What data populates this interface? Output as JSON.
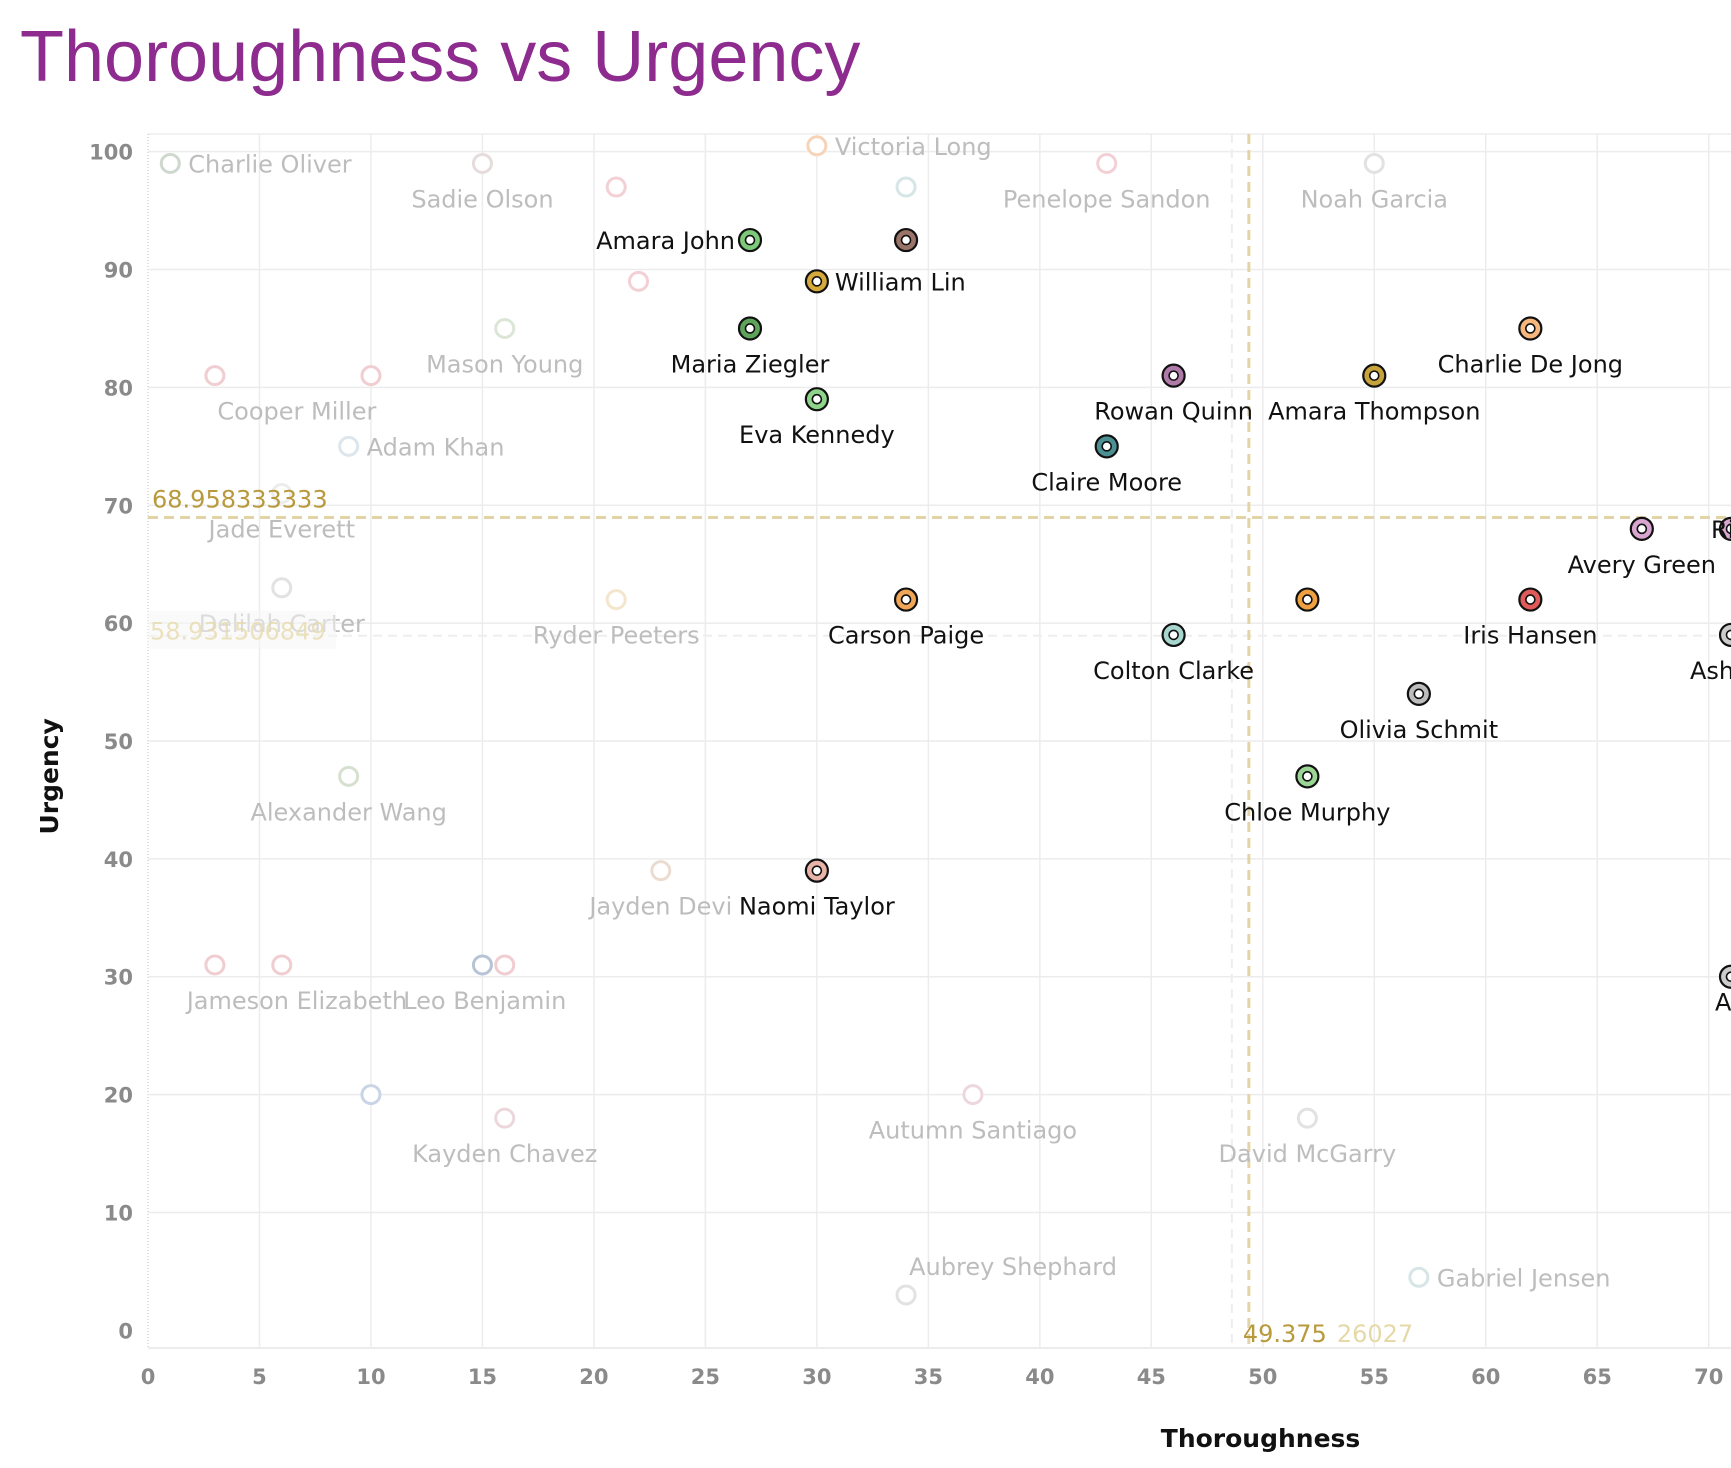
{
  "chart_data": {
    "type": "scatter",
    "title": "Thoroughness vs Urgency",
    "xlabel": "Thoroughness",
    "ylabel": "Urgency",
    "xlim": [
      0,
      71
    ],
    "ylim": [
      -1.5,
      101.5
    ],
    "x_ticks": [
      0,
      5,
      10,
      15,
      20,
      25,
      30,
      35,
      40,
      45,
      50,
      55,
      60,
      65,
      70
    ],
    "y_ticks": [
      0,
      10,
      20,
      30,
      40,
      50,
      60,
      70,
      80,
      90,
      100
    ],
    "reference_lines": {
      "x_avg": {
        "value": 49.375,
        "label": "49.375"
      },
      "x_avg_faded": {
        "label": "26027"
      },
      "y_avg": {
        "value": 68.958333333,
        "label": "68.958333333"
      },
      "y_avg_faded": {
        "value": 58.931506849,
        "label": "58.931506849"
      }
    },
    "colors": {
      "accent": "#b89a3c",
      "title": "#8e2b8e",
      "faded_text": "#bdbdbd",
      "grid": "#ececec"
    },
    "points": [
      {
        "name": "Charlie Oliver",
        "x": 1,
        "y": 99,
        "color": "#cfd8cf",
        "highlight": false,
        "label_pos": "right"
      },
      {
        "name": "Sadie Olson",
        "x": 15,
        "y": 99,
        "color": "#e6dcdc",
        "highlight": false,
        "label_pos": "below"
      },
      {
        "name": "Victoria Long",
        "x": 30,
        "y": 100.5,
        "color": "#f7d3b8",
        "highlight": false,
        "label_pos": "right"
      },
      {
        "name": "Penelope Sandon",
        "x": 43,
        "y": 99,
        "color": "#f3d0d6",
        "highlight": false,
        "label_pos": "below"
      },
      {
        "name": "Noah Garcia",
        "x": 55,
        "y": 99,
        "color": "#e2e2e2",
        "highlight": false,
        "label_pos": "below"
      },
      {
        "name": "",
        "x": 21,
        "y": 97,
        "color": "#f3d0d6",
        "highlight": false,
        "label_pos": "none"
      },
      {
        "name": "",
        "x": 34,
        "y": 97,
        "color": "#d6e6e6",
        "highlight": false,
        "label_pos": "none"
      },
      {
        "name": "Amara John",
        "x": 27,
        "y": 92.5,
        "color": "#7ec87a",
        "highlight": true,
        "label_pos": "left"
      },
      {
        "name": "",
        "x": 34,
        "y": 92.5,
        "color": "#9b7468",
        "highlight": true,
        "label_pos": "none"
      },
      {
        "name": "William Lin",
        "x": 30,
        "y": 89,
        "color": "#d6a93b",
        "highlight": true,
        "label_pos": "right"
      },
      {
        "name": "",
        "x": 22,
        "y": 89,
        "color": "#f3d0d6",
        "highlight": false,
        "label_pos": "none"
      },
      {
        "name": "Mason Young",
        "x": 16,
        "y": 85,
        "color": "#dce6d6",
        "highlight": false,
        "label_pos": "below"
      },
      {
        "name": "Maria Ziegler",
        "x": 27,
        "y": 85,
        "color": "#5ea35a",
        "highlight": true,
        "label_pos": "below"
      },
      {
        "name": "Charlie De Jong",
        "x": 62,
        "y": 85,
        "color": "#f5b77c",
        "highlight": true,
        "label_pos": "below"
      },
      {
        "name": "Cooper Miller",
        "x": 3,
        "y": 81,
        "color": "#f0cdd0",
        "highlight": false,
        "label_pos": "below-right"
      },
      {
        "name": "",
        "x": 10,
        "y": 81,
        "color": "#f0cdd0",
        "highlight": false,
        "label_pos": "none"
      },
      {
        "name": "Rowan Quinn",
        "x": 46,
        "y": 81,
        "color": "#b07aa8",
        "highlight": true,
        "label_pos": "below"
      },
      {
        "name": "Amara Thompson",
        "x": 55,
        "y": 81,
        "color": "#c7a33b",
        "highlight": true,
        "label_pos": "below"
      },
      {
        "name": "Eva Kennedy",
        "x": 30,
        "y": 79,
        "color": "#8ed48a",
        "highlight": true,
        "label_pos": "below"
      },
      {
        "name": "Adam Khan",
        "x": 9,
        "y": 75,
        "color": "#dce6ec",
        "highlight": false,
        "label_pos": "right"
      },
      {
        "name": "Claire Moore",
        "x": 43,
        "y": 75,
        "color": "#4b9194",
        "highlight": true,
        "label_pos": "below"
      },
      {
        "name": "Jade Everett",
        "x": 6,
        "y": 71,
        "color": "#ececec",
        "highlight": false,
        "label_pos": "below"
      },
      {
        "name": "Avery Green",
        "x": 67,
        "y": 68,
        "color": "#d7a5cf",
        "highlight": true,
        "label_pos": "below"
      },
      {
        "name": "Ri",
        "x": 71,
        "y": 68,
        "color": "#d7a5cf",
        "highlight": true,
        "label_pos": "edge-right"
      },
      {
        "name": "Delilah Carter",
        "x": 6,
        "y": 63,
        "color": "#e2e2e2",
        "highlight": false,
        "label_pos": "below"
      },
      {
        "name": "Ryder Peeters",
        "x": 21,
        "y": 62,
        "color": "#f3e6cc",
        "highlight": false,
        "label_pos": "below"
      },
      {
        "name": "Carson Paige",
        "x": 34,
        "y": 62,
        "color": "#f0a657",
        "highlight": true,
        "label_pos": "below"
      },
      {
        "name": "",
        "x": 52,
        "y": 62,
        "color": "#f0a040",
        "highlight": true,
        "label_pos": "none"
      },
      {
        "name": "Iris Hansen",
        "x": 62,
        "y": 62,
        "color": "#e05a5a",
        "highlight": true,
        "label_pos": "below"
      },
      {
        "name": "Colton Clarke",
        "x": 46,
        "y": 59,
        "color": "#a7d6cf",
        "highlight": true,
        "label_pos": "below"
      },
      {
        "name": "Ash",
        "x": 71,
        "y": 59,
        "color": "#cccccc",
        "highlight": true,
        "label_pos": "edge-below"
      },
      {
        "name": "Olivia Schmit",
        "x": 57,
        "y": 54,
        "color": "#bdbdbd",
        "highlight": true,
        "label_pos": "below"
      },
      {
        "name": "Alexander Wang",
        "x": 9,
        "y": 47,
        "color": "#d6e0d0",
        "highlight": false,
        "label_pos": "below"
      },
      {
        "name": "Chloe Murphy",
        "x": 52,
        "y": 47,
        "color": "#9bd694",
        "highlight": true,
        "label_pos": "below"
      },
      {
        "name": "Jayden Devi",
        "x": 23,
        "y": 39,
        "color": "#ecdcd0",
        "highlight": false,
        "label_pos": "below"
      },
      {
        "name": "Naomi Taylor",
        "x": 30,
        "y": 39,
        "color": "#e8b4a8",
        "highlight": true,
        "label_pos": "below"
      },
      {
        "name": "Jameson Elizabeth",
        "x": 3,
        "y": 31,
        "color": "#f0cdd0",
        "highlight": false,
        "label_pos": "below-right"
      },
      {
        "name": "",
        "x": 6,
        "y": 31,
        "color": "#f0cdd0",
        "highlight": false,
        "label_pos": "none"
      },
      {
        "name": "",
        "x": 15,
        "y": 31,
        "color": "#b6c4d6",
        "highlight": false,
        "label_pos": "none"
      },
      {
        "name": "Leo Benjamin",
        "x": 16,
        "y": 31,
        "color": "#f0cdd0",
        "highlight": false,
        "label_pos": "below-left"
      },
      {
        "name": "A",
        "x": 71,
        "y": 30,
        "color": "#cccccc",
        "highlight": true,
        "label_pos": "edge-below"
      },
      {
        "name": "",
        "x": 10,
        "y": 20,
        "color": "#c9d4e6",
        "highlight": false,
        "label_pos": "none"
      },
      {
        "name": "Autumn Santiago",
        "x": 37,
        "y": 20,
        "color": "#ecd8dc",
        "highlight": false,
        "label_pos": "below"
      },
      {
        "name": "Kayden Chavez",
        "x": 16,
        "y": 18,
        "color": "#ecd8dc",
        "highlight": false,
        "label_pos": "below"
      },
      {
        "name": "David McGarry",
        "x": 52,
        "y": 18,
        "color": "#e2e2e2",
        "highlight": false,
        "label_pos": "below"
      },
      {
        "name": "Gabriel Jensen",
        "x": 57,
        "y": 4.5,
        "color": "#d6e6e6",
        "highlight": false,
        "label_pos": "right"
      },
      {
        "name": "Aubrey Shephard",
        "x": 34,
        "y": 3,
        "color": "#e2e2e2",
        "highlight": false,
        "label_pos": "above-right"
      }
    ]
  }
}
